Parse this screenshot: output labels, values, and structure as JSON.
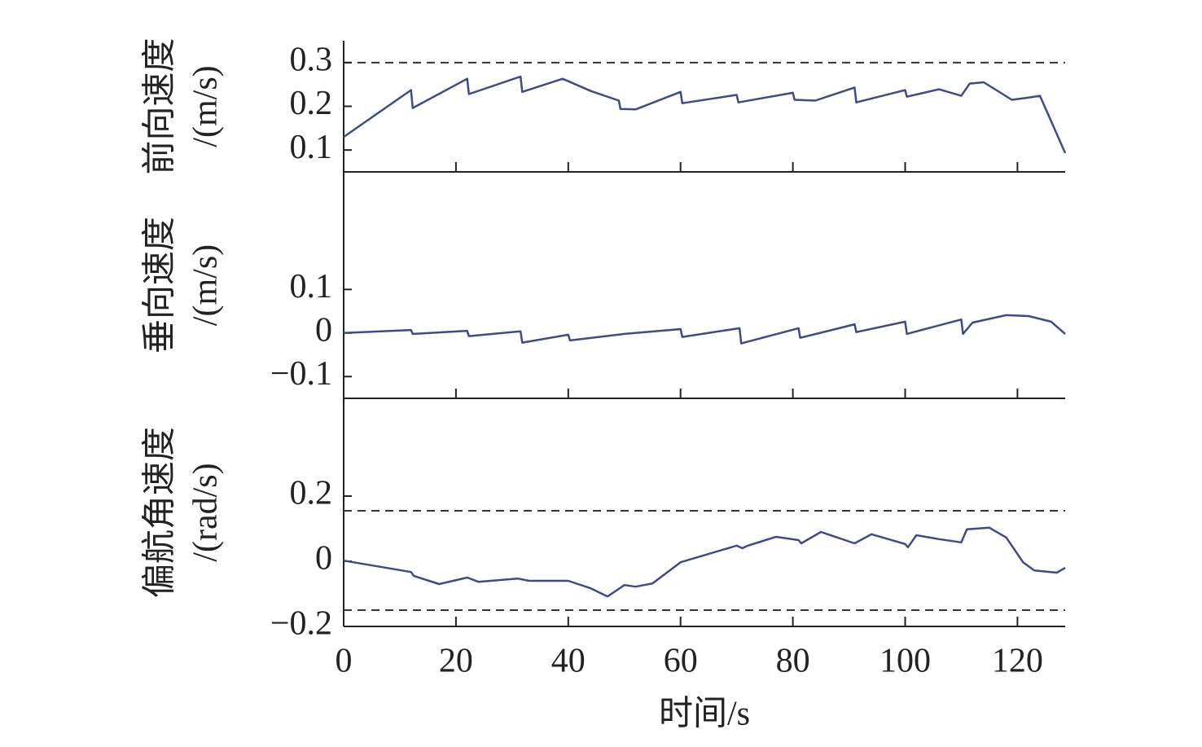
{
  "chart_data": [
    {
      "type": "line",
      "ylabel": [
        "前向速度",
        "/(m/s)"
      ],
      "color": "#3f4a8a",
      "x": [
        0,
        12,
        12.3,
        22,
        22.3,
        31.5,
        31.8,
        39,
        44,
        49,
        49.3,
        52,
        60,
        60.3,
        70,
        70.3,
        80,
        80.3,
        84,
        91,
        91.3,
        100,
        100.3,
        106,
        110,
        111.5,
        114,
        119,
        122,
        124,
        128.5
      ],
      "values": [
        0.13,
        0.237,
        0.196,
        0.263,
        0.228,
        0.268,
        0.233,
        0.263,
        0.235,
        0.213,
        0.194,
        0.193,
        0.233,
        0.207,
        0.226,
        0.209,
        0.231,
        0.215,
        0.213,
        0.243,
        0.209,
        0.237,
        0.222,
        0.239,
        0.224,
        0.252,
        0.255,
        0.215,
        0.22,
        0.224,
        0.093
      ],
      "hlines": [
        0.3
      ],
      "xlim": [
        0,
        128.5
      ],
      "ylim": [
        0.05,
        0.35
      ],
      "yticks": [
        0.1,
        0.2,
        0.3
      ],
      "xticks": [
        0,
        20,
        40,
        60,
        80,
        100,
        120
      ]
    },
    {
      "type": "line",
      "ylabel": [
        "垂向速度",
        "/(m/s)"
      ],
      "color": "#3f4a8a",
      "x": [
        0,
        12,
        12.3,
        22,
        22.3,
        31.5,
        31.8,
        40,
        40.3,
        50,
        60,
        60.3,
        70.5,
        70.8,
        81,
        81.3,
        91,
        91.3,
        100,
        100.3,
        110,
        110.3,
        112,
        118,
        122,
        126,
        128.5
      ],
      "values": [
        0,
        0.007,
        -0.002,
        0.005,
        -0.007,
        0.004,
        -0.022,
        -0.004,
        -0.017,
        -0.002,
        0.009,
        -0.009,
        0.011,
        -0.024,
        0.011,
        -0.011,
        0.02,
        0.002,
        0.026,
        -0.002,
        0.031,
        -0.002,
        0.024,
        0.041,
        0.039,
        0.026,
        -0.002
      ],
      "xlim": [
        0,
        128.5
      ],
      "ylim": [
        -0.15,
        0.37
      ],
      "yticks": [
        {
          "value": -0.1,
          "label": "−0.1"
        },
        0,
        0.1
      ],
      "xticks": [
        0,
        20,
        40,
        60,
        80,
        100,
        120
      ]
    },
    {
      "type": "line",
      "ylabel": [
        "偏航角速度",
        "/(rad/s)"
      ],
      "xlabel": "时间/s",
      "color": "#3f4a8a",
      "x": [
        0,
        12,
        12.5,
        17,
        22,
        24,
        31,
        33,
        40,
        44,
        47,
        50,
        52,
        55,
        60,
        70,
        71,
        72,
        77,
        81,
        81.5,
        85,
        91,
        94,
        100,
        100.5,
        102,
        106,
        110,
        111,
        115,
        118,
        121,
        123,
        127,
        128.5
      ],
      "values": [
        0.002,
        -0.033,
        -0.045,
        -0.07,
        -0.05,
        -0.063,
        -0.053,
        -0.06,
        -0.06,
        -0.083,
        -0.108,
        -0.073,
        -0.078,
        -0.068,
        -0.003,
        0.048,
        0.04,
        0.048,
        0.075,
        0.065,
        0.055,
        0.09,
        0.055,
        0.083,
        0.053,
        0.043,
        0.08,
        0.068,
        0.058,
        0.098,
        0.103,
        0.073,
        -0.003,
        -0.028,
        -0.035,
        -0.02
      ],
      "hlines": [
        0.155,
        -0.15
      ],
      "xlim": [
        0,
        128.5
      ],
      "ylim": [
        -0.2,
        0.5
      ],
      "yticks": [
        {
          "value": -0.2,
          "label": "−0.2"
        },
        0,
        0.2
      ],
      "xticks": [
        0,
        20,
        40,
        60,
        80,
        100,
        120
      ]
    }
  ]
}
